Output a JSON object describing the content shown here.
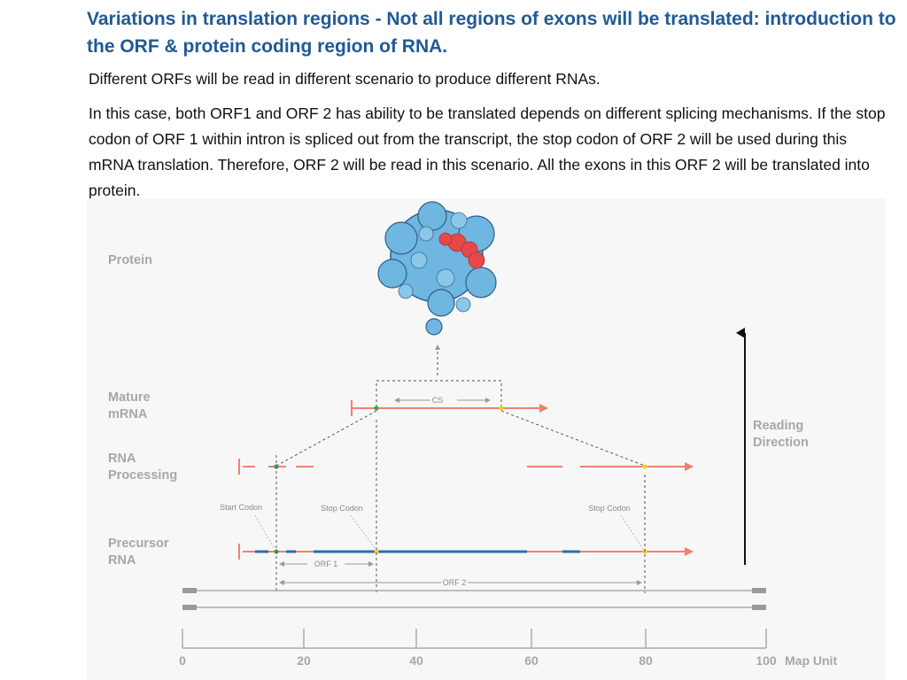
{
  "header": {
    "title": "Variations in translation regions - Not all regions of exons will be translated: introduction to the ORF & protein coding region of RNA."
  },
  "body": {
    "paragraph1": "Different ORFs will be read in different scenario to produce different RNAs.",
    "paragraph2": "In this case, both ORF1 and ORF 2 has ability to be translated depends on different splicing mechanisms. If the stop codon of ORF 1 within intron is spliced out from the transcript, the stop codon of ORF 2 will be used during this mRNA translation. Therefore, ORF 2 will be read in this scenario. All the exons in this ORF 2 will be translated into protein."
  },
  "figure": {
    "labels": {
      "protein": "Protein",
      "mature1": "Mature",
      "mature2": "mRNA",
      "processing1": "RNA",
      "processing2": "Processing",
      "precursor1": "Precursor",
      "precursor2": "RNA",
      "reading1": "Reading",
      "reading2": "Direction",
      "cs": "CS",
      "start_codon": "Start Codon",
      "stop_codon_1": "Stop Codon",
      "stop_codon_2": "Stop Codon",
      "orf1": "ORF 1",
      "orf2": "ORF 2",
      "map_unit": "Map Unit"
    },
    "axis_ticks": [
      "0",
      "20",
      "40",
      "60",
      "80",
      "100"
    ],
    "colors": {
      "exon": "#f08070",
      "intron": "#2a6cb0",
      "start_codon": "#3aa35a",
      "stop_codon": "#f2d21a",
      "protein": "#6fb6e0",
      "protein_active": "#e8474a",
      "text_label": "#a7a7a7"
    }
  }
}
